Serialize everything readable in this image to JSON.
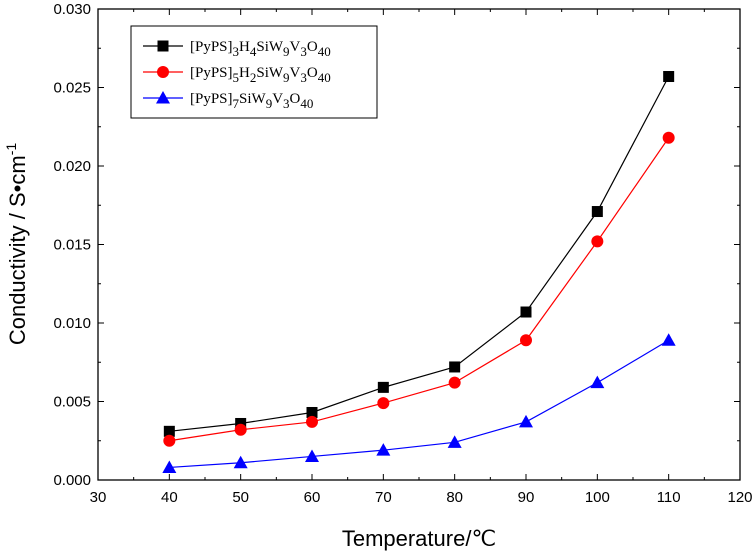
{
  "chart_data": {
    "type": "line",
    "title": "",
    "xlabel": "Temperature/℃",
    "ylabel": "Conductivity / S•cm",
    "ylabel_superscript": "-1",
    "xlim": [
      30,
      120
    ],
    "ylim": [
      0.0,
      0.03
    ],
    "xticks": [
      30,
      40,
      50,
      60,
      70,
      80,
      90,
      100,
      110,
      120
    ],
    "xtick_labels": [
      "30",
      "40",
      "50",
      "60",
      "70",
      "80",
      "90",
      "100",
      "110",
      "120"
    ],
    "yticks": [
      0.0,
      0.005,
      0.01,
      0.015,
      0.02,
      0.025,
      0.03
    ],
    "ytick_labels": [
      "0.000",
      "0.005",
      "0.010",
      "0.015",
      "0.020",
      "0.025",
      "0.030"
    ],
    "grid": false,
    "legend_position": "top-left",
    "x": [
      40,
      50,
      60,
      70,
      80,
      90,
      100,
      110
    ],
    "series": [
      {
        "name": "[PyPS]3H4SiW9V3O40",
        "legend_parts": [
          {
            "t": "[PyPS]",
            "sub": false
          },
          {
            "t": "3",
            "sub": true
          },
          {
            "t": "H",
            "sub": false
          },
          {
            "t": "4",
            "sub": true
          },
          {
            "t": "SiW",
            "sub": false
          },
          {
            "t": "9",
            "sub": true
          },
          {
            "t": "V",
            "sub": false
          },
          {
            "t": "3",
            "sub": true
          },
          {
            "t": "O",
            "sub": false
          },
          {
            "t": "40",
            "sub": true
          }
        ],
        "color": "#000000",
        "marker": "square",
        "values": [
          0.0031,
          0.0036,
          0.0043,
          0.0059,
          0.0072,
          0.0107,
          0.0171,
          0.0257
        ]
      },
      {
        "name": "[PyPS]5H2SiW9V3O40",
        "legend_parts": [
          {
            "t": "[PyPS]",
            "sub": false
          },
          {
            "t": "5",
            "sub": true
          },
          {
            "t": "H",
            "sub": false
          },
          {
            "t": "2",
            "sub": true
          },
          {
            "t": "SiW",
            "sub": false
          },
          {
            "t": "9",
            "sub": true
          },
          {
            "t": "V",
            "sub": false
          },
          {
            "t": "3",
            "sub": true
          },
          {
            "t": "O",
            "sub": false
          },
          {
            "t": "40",
            "sub": true
          }
        ],
        "color": "#ff0000",
        "marker": "circle",
        "values": [
          0.0025,
          0.0032,
          0.0037,
          0.0049,
          0.0062,
          0.0089,
          0.0152,
          0.0218
        ]
      },
      {
        "name": "[PyPS]7SiW9V3O40",
        "legend_parts": [
          {
            "t": "[PyPS]",
            "sub": false
          },
          {
            "t": "7",
            "sub": true
          },
          {
            "t": "SiW",
            "sub": false
          },
          {
            "t": "9",
            "sub": true
          },
          {
            "t": "V",
            "sub": false
          },
          {
            "t": "3",
            "sub": true
          },
          {
            "t": "O",
            "sub": false
          },
          {
            "t": "40",
            "sub": true
          }
        ],
        "color": "#0000ff",
        "marker": "triangle",
        "values": [
          0.0008,
          0.0011,
          0.0015,
          0.0019,
          0.0024,
          0.0037,
          0.0062,
          0.0089
        ]
      }
    ]
  }
}
